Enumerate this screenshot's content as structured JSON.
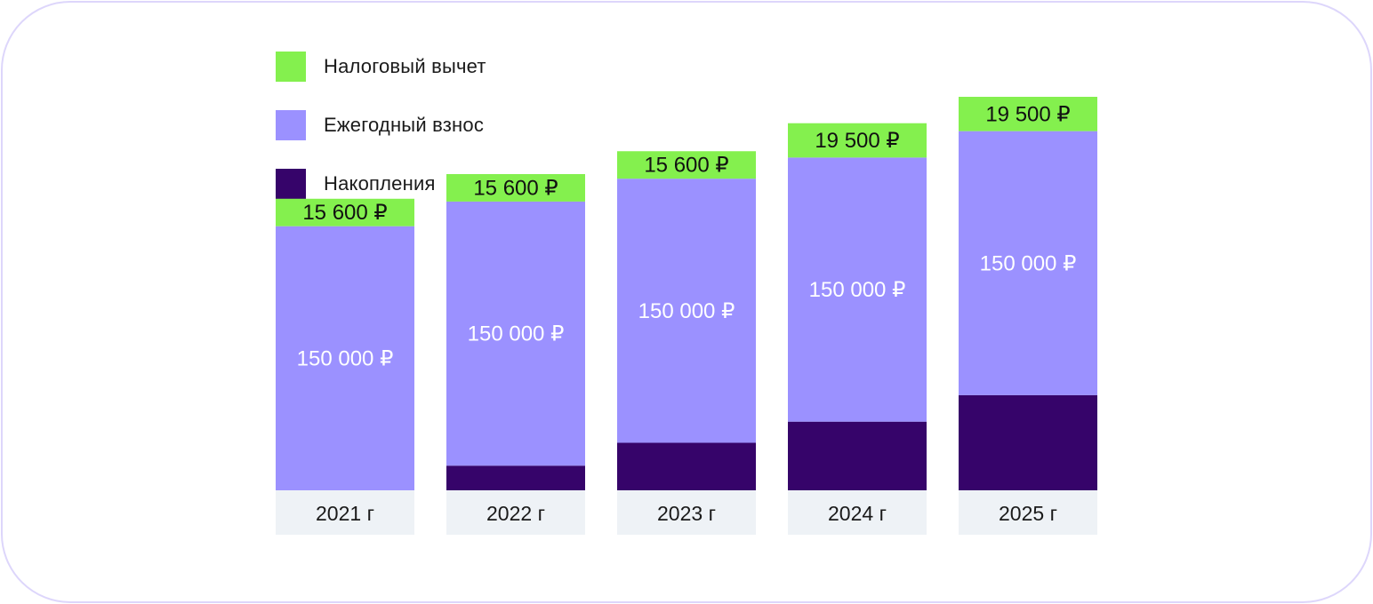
{
  "chart_data": {
    "type": "bar",
    "stacked": true,
    "categories": [
      "2021 г",
      "2022 г",
      "2023 г",
      "2024 г",
      "2025 г"
    ],
    "series": [
      {
        "name": "Накопления",
        "color": "#36046a",
        "values": [
          0,
          14000,
          27000,
          39000,
          54000
        ],
        "labels": [
          "",
          "",
          "",
          "",
          ""
        ],
        "label_color": "#ffffff"
      },
      {
        "name": "Ежегодный взнос",
        "color": "#9b91ff",
        "values": [
          150000,
          150000,
          150000,
          150000,
          150000
        ],
        "labels": [
          "150 000 ₽",
          "150 000 ₽",
          "150 000 ₽",
          "150 000 ₽",
          "150 000 ₽"
        ],
        "label_color": "#ffffff"
      },
      {
        "name": "Налоговый вычет",
        "color": "#84f04e",
        "values": [
          15600,
          15600,
          15600,
          19500,
          19500
        ],
        "labels": [
          "15 600 ₽",
          "15 600 ₽",
          "15 600 ₽",
          "19 500 ₽",
          "19 500 ₽"
        ],
        "label_color": "#111111"
      }
    ],
    "legend_order": [
      "Налоговый вычет",
      "Ежегодный взнос",
      "Накопления"
    ],
    "legend_position": "top-left",
    "category_bg_color": "#eef2f6",
    "ylim": [
      0,
      224000
    ],
    "grid": false
  }
}
